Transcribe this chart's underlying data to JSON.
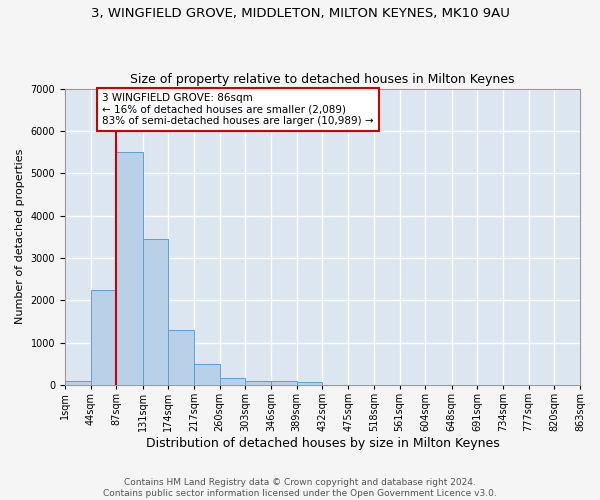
{
  "title": "3, WINGFIELD GROVE, MIDDLETON, MILTON KEYNES, MK10 9AU",
  "subtitle": "Size of property relative to detached houses in Milton Keynes",
  "xlabel": "Distribution of detached houses by size in Milton Keynes",
  "ylabel": "Number of detached properties",
  "footer_line1": "Contains HM Land Registry data © Crown copyright and database right 2024.",
  "footer_line2": "Contains public sector information licensed under the Open Government Licence v3.0.",
  "bin_edges": [
    1,
    44,
    87,
    131,
    174,
    217,
    260,
    303,
    346,
    389,
    432,
    475,
    518,
    561,
    604,
    648,
    691,
    734,
    777,
    820,
    863
  ],
  "bar_heights": [
    100,
    2250,
    5500,
    3450,
    1300,
    500,
    170,
    90,
    90,
    70,
    0,
    0,
    0,
    0,
    0,
    0,
    0,
    0,
    0,
    0
  ],
  "bar_color": "#b8d0e8",
  "bar_edge_color": "#5a9fd4",
  "fig_background_color": "#f5f5f5",
  "plot_background_color": "#dce6f0",
  "grid_color": "#ffffff",
  "property_line_x": 86,
  "property_line_color": "#cc0000",
  "annotation_text": "3 WINGFIELD GROVE: 86sqm\n← 16% of detached houses are smaller (2,089)\n83% of semi-detached houses are larger (10,989) →",
  "annotation_box_facecolor": "#ffffff",
  "annotation_box_edgecolor": "#cc0000",
  "ylim": [
    0,
    7000
  ],
  "yticks": [
    0,
    1000,
    2000,
    3000,
    4000,
    5000,
    6000,
    7000
  ],
  "title_fontsize": 9.5,
  "subtitle_fontsize": 9,
  "xlabel_fontsize": 9,
  "ylabel_fontsize": 8,
  "tick_fontsize": 7,
  "footer_fontsize": 6.5
}
